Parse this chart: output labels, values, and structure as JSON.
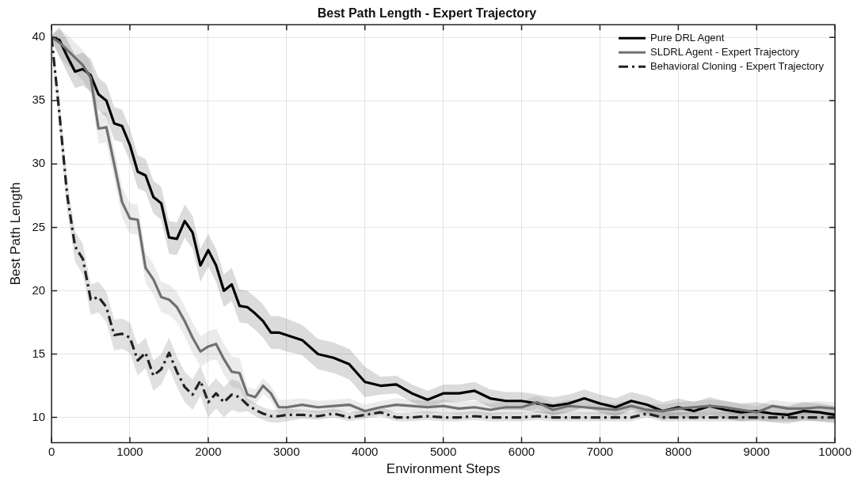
{
  "chart_data": {
    "type": "line",
    "title": "Best Path Length - Expert Trajectory",
    "xlabel": "Environment Steps",
    "ylabel": "Best Path Length",
    "x": [
      0,
      100,
      200,
      300,
      400,
      500,
      600,
      700,
      800,
      900,
      1000,
      1100,
      1200,
      1300,
      1400,
      1500,
      1600,
      1700,
      1800,
      1900,
      2000,
      2100,
      2200,
      2300,
      2400,
      2500,
      2600,
      2700,
      2800,
      2900,
      3000,
      3200,
      3400,
      3600,
      3800,
      4000,
      4200,
      4400,
      4600,
      4800,
      5000,
      5200,
      5400,
      5600,
      5800,
      6000,
      6200,
      6400,
      6600,
      6800,
      7000,
      7200,
      7400,
      7600,
      7800,
      8000,
      8200,
      8400,
      8600,
      8800,
      9000,
      9200,
      9400,
      9600,
      9800,
      10000
    ],
    "xlim": [
      0,
      10000
    ],
    "xticks": [
      0,
      1000,
      2000,
      3000,
      4000,
      5000,
      6000,
      7000,
      8000,
      9000,
      10000
    ],
    "ylim": [
      8,
      41
    ],
    "yticks": [
      10,
      15,
      20,
      25,
      30,
      35,
      40
    ],
    "grid": true,
    "legend": "top right",
    "marker": "none",
    "series": [
      {
        "name": "Pure DRL Agent",
        "color": "#000000",
        "line_style": "solid",
        "values": [
          40,
          39.8,
          38.5,
          37.3,
          37.5,
          37,
          35.5,
          35,
          33.2,
          33,
          31.5,
          29.4,
          29.1,
          27.4,
          26.9,
          24.2,
          24.1,
          25.5,
          24.6,
          22,
          23.2,
          22,
          20,
          20.5,
          18.8,
          18.7,
          18.2,
          17.6,
          16.7,
          16.7,
          16.5,
          16.1,
          15,
          14.7,
          14.2,
          12.8,
          12.5,
          12.6,
          11.9,
          11.4,
          11.9,
          11.9,
          12.1,
          11.5,
          11.3,
          11.3,
          11.1,
          10.9,
          11.1,
          11.5,
          11.1,
          10.8,
          11.3,
          11,
          10.5,
          10.8,
          10.5,
          10.9,
          10.6,
          10.4,
          10.5,
          10.3,
          10.2,
          10.5,
          10.4,
          10.2
        ],
        "lower": [
          39.8,
          38.5,
          37.2,
          36,
          36.2,
          35.7,
          34.2,
          33.7,
          31.9,
          31.7,
          30.2,
          28.1,
          27.8,
          26.1,
          25.6,
          22.9,
          22.8,
          24.2,
          23.3,
          20.7,
          21.9,
          20.7,
          18.7,
          19.2,
          17.5,
          17.4,
          16.9,
          16.3,
          15.4,
          15.4,
          15.2,
          14.9,
          13.8,
          13.5,
          13,
          11.6,
          11.8,
          11.9,
          11.2,
          10.7,
          11.2,
          11.2,
          11.4,
          10.8,
          10.6,
          10.6,
          10.4,
          10.2,
          10.4,
          10.8,
          10.4,
          10.1,
          10.6,
          10.3,
          9.8,
          10.1,
          9.8,
          10.2,
          9.9,
          9.7,
          9.8,
          9.6,
          9.5,
          9.8,
          9.7,
          9.5
        ],
        "upper": [
          40.2,
          40.8,
          39.8,
          38.6,
          38.8,
          38.3,
          36.8,
          36.3,
          34.5,
          34.3,
          32.8,
          30.7,
          30.4,
          28.7,
          28.2,
          25.5,
          25.4,
          26.8,
          25.9,
          23.3,
          24.5,
          23.3,
          21.3,
          21.8,
          20.1,
          20,
          19.5,
          18.9,
          18,
          18,
          17.8,
          17.3,
          16.2,
          15.9,
          15.4,
          14,
          13.2,
          13.3,
          12.6,
          12.1,
          12.6,
          12.6,
          12.8,
          12.2,
          12,
          12,
          11.8,
          11.6,
          11.8,
          12.2,
          11.8,
          11.5,
          12,
          11.7,
          11.2,
          11.5,
          11.2,
          11.6,
          11.3,
          11.1,
          11.2,
          11,
          10.9,
          11.2,
          11.1,
          10.9
        ]
      },
      {
        "name": "SLDRL Agent - Expert Trajectory",
        "color": "#707070",
        "line_style": "solid",
        "values": [
          40,
          39.6,
          39,
          38.4,
          37.8,
          36.8,
          32.8,
          32.9,
          30,
          27,
          25.7,
          25.6,
          21.8,
          20.9,
          19.5,
          19.3,
          18.7,
          17.6,
          16.3,
          15.2,
          15.6,
          15.8,
          14.6,
          13.6,
          13.5,
          11.8,
          11.6,
          12.5,
          11.9,
          10.8,
          10.8,
          11,
          10.8,
          10.9,
          11,
          10.5,
          10.8,
          11,
          10.9,
          10.8,
          10.9,
          10.7,
          10.8,
          10.6,
          10.8,
          10.8,
          11.2,
          10.6,
          10.9,
          10.8,
          10.7,
          10.6,
          10.9,
          10.6,
          10.5,
          10.7,
          10.8,
          10.9,
          10.8,
          10.6,
          10.4,
          10.9,
          10.7,
          10.7,
          10.8,
          10.7
        ],
        "lower": [
          39.8,
          38.4,
          37.8,
          37.2,
          36.6,
          35.6,
          31.6,
          31.7,
          28.8,
          25.8,
          24.5,
          24.4,
          20.6,
          19.7,
          18.3,
          18.1,
          17.5,
          16.4,
          15.1,
          14,
          14.4,
          14.6,
          13.4,
          12.4,
          12.3,
          11.2,
          11,
          11.9,
          11.3,
          10.2,
          10.2,
          10.5,
          10.3,
          10.4,
          10.5,
          10,
          10.3,
          10.5,
          10.4,
          10.3,
          10.4,
          10.2,
          10.3,
          10.1,
          10.3,
          10.3,
          10.7,
          10.1,
          10.4,
          10.3,
          10.2,
          10.1,
          10.4,
          10.1,
          10,
          10.2,
          10.3,
          10.4,
          10.3,
          10.1,
          9.9,
          10.4,
          10.2,
          10.2,
          10.3,
          10.2
        ],
        "upper": [
          40.2,
          40.6,
          40.2,
          39.6,
          39,
          38,
          34,
          34.1,
          31.2,
          28.2,
          26.9,
          26.8,
          23,
          22.1,
          20.7,
          20.5,
          19.9,
          18.8,
          17.5,
          16.4,
          16.8,
          17,
          15.8,
          14.8,
          14.7,
          12.4,
          12.2,
          13.1,
          12.5,
          11.4,
          11.4,
          11.5,
          11.3,
          11.4,
          11.5,
          11,
          11.3,
          11.5,
          11.4,
          11.3,
          11.4,
          11.2,
          11.3,
          11.1,
          11.3,
          11.3,
          11.7,
          11.1,
          11.4,
          11.3,
          11.2,
          11.1,
          11.4,
          11.1,
          11,
          11.2,
          11.3,
          11.4,
          11.3,
          11.1,
          10.9,
          11.4,
          11.2,
          11.2,
          11.3,
          11.2
        ]
      },
      {
        "name": "Behavioral Cloning - Expert Trajectory",
        "color": "#222222",
        "line_style": "dashed",
        "values": [
          40,
          34,
          27.5,
          23.5,
          22.5,
          19.3,
          19.5,
          18.7,
          16.5,
          16.6,
          16.3,
          14.5,
          15.1,
          13.3,
          13.8,
          15.1,
          13.6,
          12.4,
          11.8,
          12.9,
          11.2,
          11.9,
          11.2,
          11.8,
          11.6,
          11,
          10.6,
          10.3,
          10.1,
          10.1,
          10.2,
          10.2,
          10.1,
          10.3,
          10,
          10.2,
          10.4,
          10,
          10,
          10.1,
          10,
          10,
          10.1,
          10,
          10,
          10,
          10.1,
          10,
          10,
          10,
          10,
          10,
          10,
          10.3,
          10,
          10,
          10,
          10,
          10,
          10,
          10,
          10,
          10,
          10,
          10,
          10
        ],
        "lower": [
          39.8,
          32.8,
          26.3,
          22.3,
          21.3,
          18.1,
          18.3,
          17.5,
          15.3,
          15.4,
          15.1,
          13.3,
          13.9,
          12.1,
          12.6,
          13.9,
          12.4,
          11.2,
          10.6,
          11.7,
          10,
          10.7,
          10,
          10.6,
          10.4,
          10.5,
          10.1,
          9.8,
          9.6,
          9.6,
          9.7,
          9.9,
          9.8,
          10,
          9.7,
          9.9,
          10.1,
          9.7,
          9.7,
          9.8,
          9.7,
          9.7,
          9.8,
          9.7,
          9.7,
          9.7,
          9.8,
          9.7,
          9.7,
          9.7,
          9.7,
          9.7,
          9.7,
          10,
          9.7,
          9.7,
          9.7,
          9.7,
          9.7,
          9.7,
          9.7,
          9.7,
          9.7,
          9.7,
          9.7,
          9.7
        ],
        "upper": [
          40.2,
          35.2,
          28.7,
          24.7,
          23.7,
          20.5,
          20.7,
          19.9,
          17.7,
          17.8,
          17.5,
          15.7,
          16.3,
          14.5,
          15,
          16.3,
          14.8,
          13.6,
          13,
          14.1,
          12.4,
          13.1,
          12.4,
          13,
          12.8,
          11.5,
          11.1,
          10.8,
          10.6,
          10.6,
          10.7,
          10.6,
          10.5,
          10.7,
          10.4,
          10.6,
          10.8,
          10.4,
          10.4,
          10.5,
          10.4,
          10.4,
          10.5,
          10.4,
          10.4,
          10.4,
          10.5,
          10.4,
          10.4,
          10.4,
          10.4,
          10.4,
          10.4,
          10.7,
          10.4,
          10.4,
          10.4,
          10.4,
          10.4,
          10.4,
          10.4,
          10.4,
          10.4,
          10.4,
          10.4,
          10.4
        ]
      }
    ]
  }
}
